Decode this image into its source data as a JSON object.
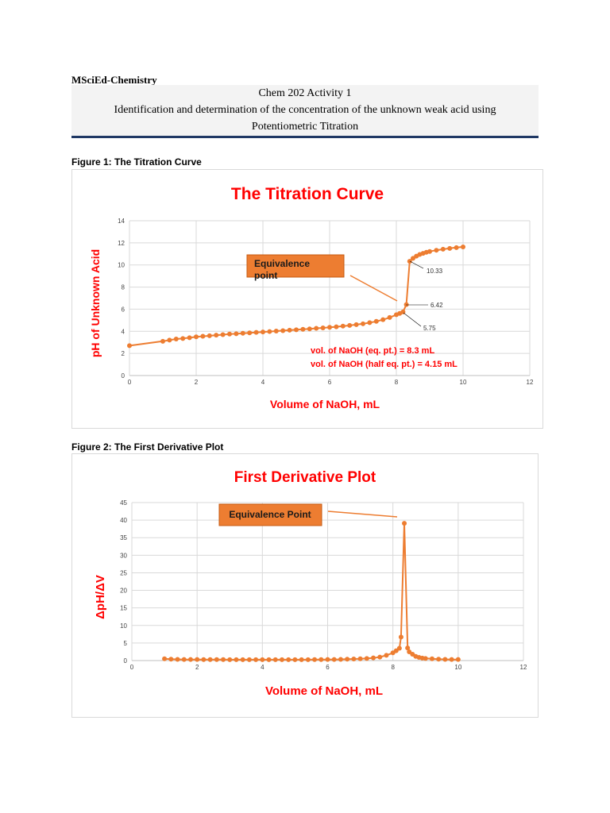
{
  "document": {
    "program": "MSciEd-Chemistry",
    "course_line": "Chem 202 Activity 1",
    "title_line1": "Identification and determination of the concentration of the unknown weak acid using",
    "title_line2": "Potentiometric Titration"
  },
  "figure1": {
    "caption": "Figure 1: The Titration Curve",
    "accent_color": "#ed7d31",
    "callout_text": [
      "Equivalence",
      "point"
    ],
    "notes": [
      "vol. of NaOH (eq. pt.) = 8.3 mL",
      "vol. of NaOH (half eq. pt.) = 4.15 mL"
    ],
    "point_labels": [
      "10.33",
      "6.42",
      "5.75"
    ]
  },
  "figure2": {
    "caption": "Figure 2: The First Derivative Plot",
    "accent_color": "#ed7d31",
    "callout_text": "Equivalence Point"
  },
  "chart_data": [
    {
      "type": "line",
      "title": "The Titration Curve",
      "xlabel": "Volume of NaOH, mL",
      "ylabel": "pH of Unknown Acid",
      "xlim": [
        0,
        12
      ],
      "ylim": [
        0,
        14
      ],
      "xticks": [
        0,
        2,
        4,
        6,
        8,
        10,
        12
      ],
      "yticks": [
        0,
        2,
        4,
        6,
        8,
        10,
        12,
        14
      ],
      "grid": true,
      "x": [
        0,
        1,
        1.2,
        1.4,
        1.6,
        1.8,
        2.0,
        2.2,
        2.4,
        2.6,
        2.8,
        3.0,
        3.2,
        3.4,
        3.6,
        3.8,
        4.0,
        4.2,
        4.4,
        4.6,
        4.8,
        5.0,
        5.2,
        5.4,
        5.6,
        5.8,
        6.0,
        6.2,
        6.4,
        6.6,
        6.8,
        7.0,
        7.2,
        7.4,
        7.6,
        7.8,
        8.0,
        8.1,
        8.2,
        8.3,
        8.4,
        8.5,
        8.6,
        8.7,
        8.8,
        8.9,
        9.0,
        9.2,
        9.4,
        9.6,
        9.8,
        10.0
      ],
      "y": [
        2.7,
        3.1,
        3.2,
        3.3,
        3.35,
        3.42,
        3.5,
        3.55,
        3.6,
        3.65,
        3.7,
        3.75,
        3.78,
        3.82,
        3.86,
        3.9,
        3.94,
        3.98,
        4.02,
        4.06,
        4.1,
        4.14,
        4.18,
        4.22,
        4.27,
        4.31,
        4.36,
        4.41,
        4.47,
        4.53,
        4.6,
        4.68,
        4.78,
        4.9,
        5.05,
        5.25,
        5.5,
        5.62,
        5.75,
        6.42,
        10.33,
        10.6,
        10.8,
        10.95,
        11.05,
        11.15,
        11.22,
        11.33,
        11.42,
        11.5,
        11.57,
        11.63
      ]
    },
    {
      "type": "line",
      "title": "First Derivative Plot",
      "xlabel": "Volume of NaOH, mL",
      "ylabel": "ΔpH/ΔV",
      "xlim": [
        0,
        12
      ],
      "ylim": [
        0,
        45
      ],
      "xticks": [
        0,
        2,
        4,
        6,
        8,
        10,
        12
      ],
      "yticks": [
        0,
        5,
        10,
        15,
        20,
        25,
        30,
        35,
        40,
        45
      ],
      "grid": true,
      "x": [
        1.0,
        1.2,
        1.4,
        1.6,
        1.8,
        2.0,
        2.2,
        2.4,
        2.6,
        2.8,
        3.0,
        3.2,
        3.4,
        3.6,
        3.8,
        4.0,
        4.2,
        4.4,
        4.6,
        4.8,
        5.0,
        5.2,
        5.4,
        5.6,
        5.8,
        6.0,
        6.2,
        6.4,
        6.6,
        6.8,
        7.0,
        7.2,
        7.4,
        7.6,
        7.8,
        8.0,
        8.1,
        8.2,
        8.25,
        8.35,
        8.45,
        8.5,
        8.6,
        8.7,
        8.8,
        8.9,
        9.0,
        9.2,
        9.4,
        9.6,
        9.8,
        10.0
      ],
      "y": [
        0.5,
        0.4,
        0.35,
        0.3,
        0.3,
        0.3,
        0.28,
        0.27,
        0.27,
        0.27,
        0.26,
        0.25,
        0.25,
        0.25,
        0.25,
        0.25,
        0.25,
        0.25,
        0.25,
        0.25,
        0.25,
        0.25,
        0.26,
        0.27,
        0.28,
        0.3,
        0.32,
        0.35,
        0.4,
        0.45,
        0.5,
        0.6,
        0.75,
        1.0,
        1.5,
        2.2,
        2.8,
        3.5,
        6.7,
        39.1,
        3.6,
        2.5,
        1.8,
        1.2,
        0.9,
        0.7,
        0.6,
        0.5,
        0.4,
        0.35,
        0.3,
        0.3
      ]
    }
  ]
}
